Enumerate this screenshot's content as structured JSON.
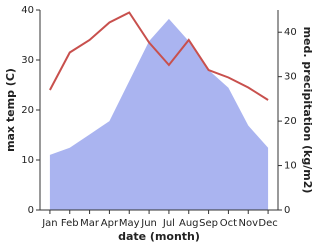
{
  "chart_data": {
    "type": "combo",
    "x_label": "date (month)",
    "y_label": "max temp (C)",
    "y2_label": "med. precipitation (kg/m2)",
    "categories": [
      "Jan",
      "Feb",
      "Mar",
      "Apr",
      "May",
      "Jun",
      "Jul",
      "Aug",
      "Sep",
      "Oct",
      "Nov",
      "Dec"
    ],
    "series": [
      {
        "name": "med. precipitation (kg/m2)",
        "type": "area",
        "axis": "y2",
        "color": "#aab4f0",
        "values": [
          12.4,
          14,
          17,
          20,
          29,
          38,
          43,
          38,
          31.5,
          27.5,
          19,
          14
        ]
      },
      {
        "name": "max temp (C)",
        "type": "line",
        "color": "#c8504d",
        "values": [
          24,
          31.5,
          34,
          37.5,
          39.5,
          33.5,
          29,
          34,
          28,
          26.5,
          24.5,
          22
        ]
      }
    ],
    "ylim": [
      0,
      40
    ],
    "yticks": [
      0,
      10,
      20,
      30,
      40
    ],
    "y2lim": [
      0,
      45
    ],
    "y2ticks": [
      0,
      10,
      20,
      30,
      40
    ]
  }
}
